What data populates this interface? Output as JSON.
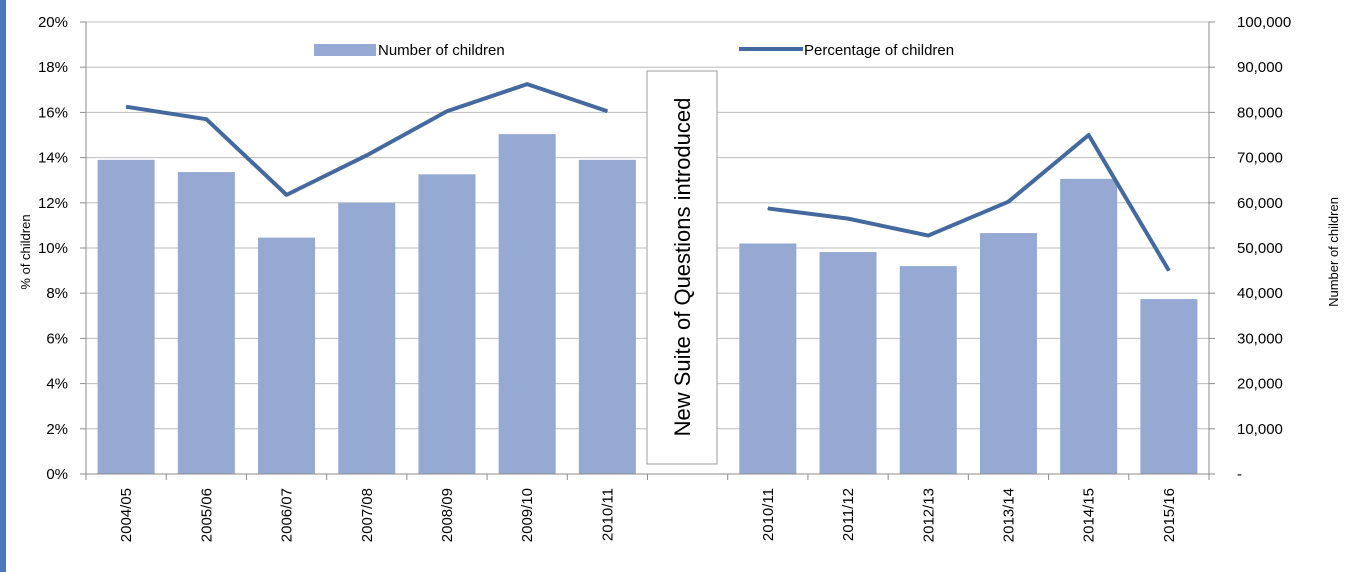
{
  "chart_data": {
    "type": "bar",
    "categories": [
      "2004/05",
      "2005/06",
      "2006/07",
      "2007/08",
      "2008/09",
      "2009/10",
      "2010/11",
      "",
      "2010/11",
      "2011/12",
      "2012/13",
      "2013/14",
      "2014/15",
      "2015/16"
    ],
    "series": [
      {
        "name": "Number of children",
        "type": "bar",
        "axis": "right",
        "color": "#95a9d2",
        "values": [
          69500,
          66800,
          52300,
          60000,
          66300,
          75200,
          69500,
          null,
          51000,
          49100,
          46000,
          53300,
          65300,
          38700
        ]
      },
      {
        "name": "Percentage of children",
        "type": "line",
        "axis": "left",
        "color": "#44699e",
        "values": [
          16.25,
          15.7,
          12.35,
          14.1,
          16.05,
          17.25,
          16.05,
          null,
          11.75,
          11.3,
          10.55,
          12.05,
          15.0,
          9.0
        ]
      }
    ],
    "y_left": {
      "label": "% of children",
      "min": 0,
      "max": 20,
      "ticks": [
        "0%",
        "2%",
        "4%",
        "6%",
        "8%",
        "10%",
        "12%",
        "14%",
        "16%",
        "18%",
        "20%"
      ]
    },
    "y_right": {
      "label": "Number of children",
      "min": 0,
      "max": 100000,
      "ticks": [
        "-",
        "10,000",
        "20,000",
        "30,000",
        "40,000",
        "50,000",
        "60,000",
        "70,000",
        "80,000",
        "90,000",
        "100,000"
      ]
    },
    "grid": true,
    "legend_position": "top",
    "annotation": "New Suite of Questions introduced"
  }
}
